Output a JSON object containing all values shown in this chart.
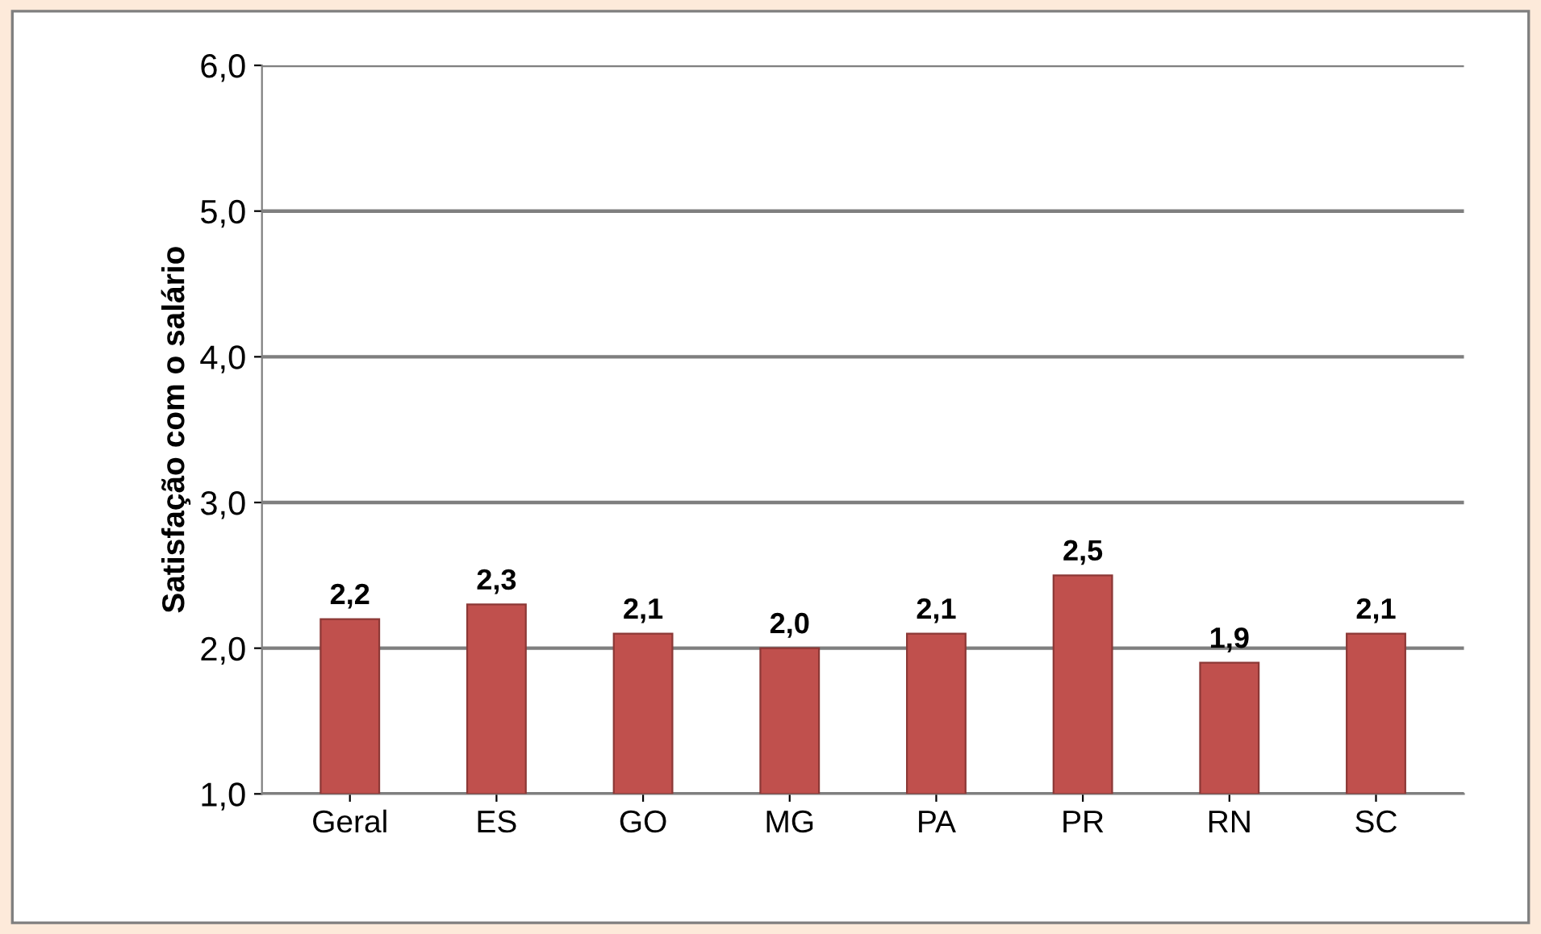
{
  "chart_data": {
    "type": "bar",
    "ylabel": "Satisfação com o salário",
    "categories": [
      "Geral",
      "ES",
      "GO",
      "MG",
      "PA",
      "PR",
      "RN",
      "SC"
    ],
    "values": [
      2.2,
      2.3,
      2.1,
      2.0,
      2.1,
      2.5,
      1.9,
      2.1
    ],
    "value_labels": [
      "2,2",
      "2,3",
      "2,1",
      "2,0",
      "2,1",
      "2,5",
      "1,9",
      "2,1"
    ],
    "color": "#c0504d",
    "ylim": [
      1,
      6
    ],
    "yticks": [
      {
        "value": 1,
        "label": "1,0"
      },
      {
        "value": 2,
        "label": "2,0"
      },
      {
        "value": 3,
        "label": "3,0"
      },
      {
        "value": 4,
        "label": "4,0"
      },
      {
        "value": 5,
        "label": "5,0"
      },
      {
        "value": 6,
        "label": "6,0"
      }
    ],
    "grid": "y"
  }
}
